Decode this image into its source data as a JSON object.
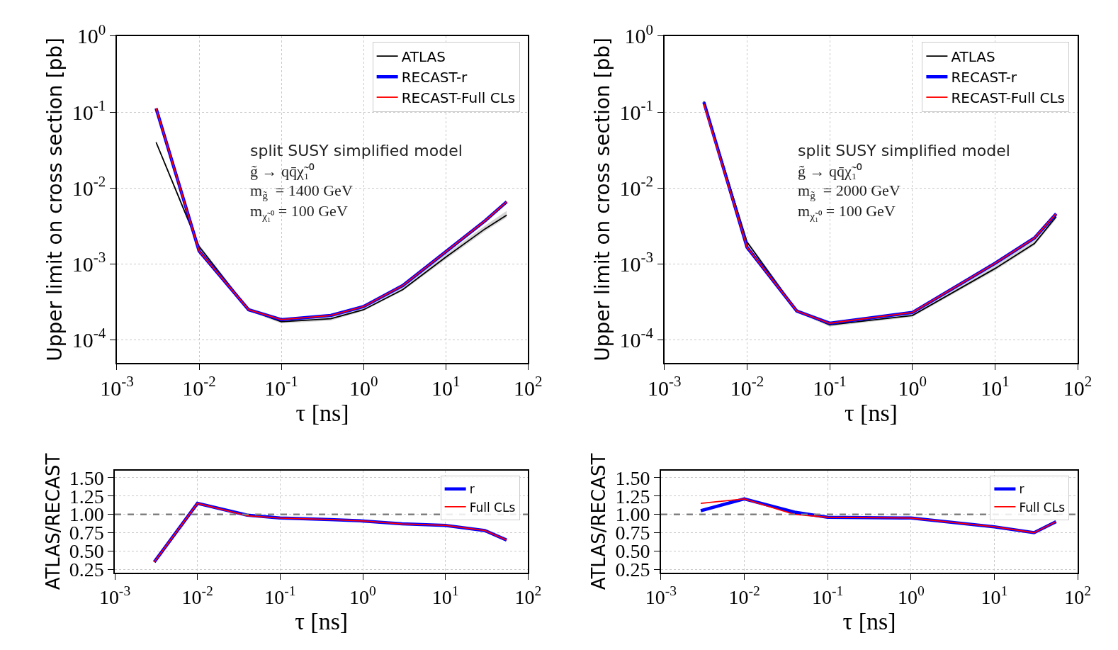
{
  "chart_data": [
    {
      "type": "line",
      "log": "xy",
      "grid": true,
      "legend": "top right",
      "line_style": "solid",
      "xlabel": "τ [ns]",
      "ylabel": "Upper limit on cross section [pb]",
      "xlim": [
        0.001,
        100
      ],
      "xticks": [
        {
          "value": 0.001,
          "label": "10$^{-3}$"
        },
        {
          "value": 0.01,
          "label": "10$^{-2}$"
        },
        {
          "value": 0.1,
          "label": "10$^{-1}$"
        },
        {
          "value": 1,
          "label": "10$^{0}$"
        },
        {
          "value": 10,
          "label": "10$^{1}$"
        },
        {
          "value": 100,
          "label": "10$^{2}$"
        }
      ],
      "ylim": [
        5e-05,
        1
      ],
      "yticks": [
        {
          "value": 0.0001,
          "label": "10$^{-4}$"
        },
        {
          "value": 0.001,
          "label": "10$^{-3}$"
        },
        {
          "value": 0.01,
          "label": "10$^{-2}$"
        },
        {
          "value": 0.1,
          "label": "10$^{-1}$"
        },
        {
          "value": 1,
          "label": "10$^{0}$"
        }
      ],
      "annotations": [
        "split SUSY simplified model",
        "g̃ → qq̄χ̃₁⁰",
        "m$_{g̃}$  = 1400 GeV",
        "m$_{χ̃₁⁰}$ = 100 GeV"
      ],
      "series": [
        {
          "name": "ATLAS",
          "color": "#000000",
          "x": [
            0.003,
            0.01,
            0.04,
            0.1,
            0.4,
            1,
            3,
            10,
            30,
            55
          ],
          "values": [
            0.04,
            0.0017,
            0.00025,
            0.000174,
            0.00019,
            0.00025,
            0.00046,
            0.00123,
            0.0029,
            0.0044
          ],
          "lower": [
            0.038,
            0.0016,
            0.00024,
            0.000165,
            0.00018,
            0.00024,
            0.00044,
            0.00115,
            0.0027,
            0.0041
          ],
          "upper": [
            0.042,
            0.0018,
            0.00026,
            0.000185,
            0.0002,
            0.00027,
            0.0005,
            0.00135,
            0.0032,
            0.005
          ]
        },
        {
          "name": "RECAST-r",
          "color": "#0000ff",
          "x": [
            0.003,
            0.01,
            0.04,
            0.1,
            0.4,
            1,
            3,
            10,
            30,
            55
          ],
          "values": [
            0.112,
            0.00148,
            0.00025,
            0.000185,
            0.00021,
            0.000275,
            0.00052,
            0.00145,
            0.0037,
            0.0066
          ]
        },
        {
          "name": "RECAST-Full CLs",
          "color": "#ff0000",
          "x": [
            0.003,
            0.01,
            0.04,
            0.1,
            0.4,
            1,
            3,
            10,
            30,
            55
          ],
          "values": [
            0.112,
            0.00148,
            0.00025,
            0.000185,
            0.00021,
            0.000275,
            0.00052,
            0.00145,
            0.0037,
            0.0066
          ]
        }
      ]
    },
    {
      "type": "line",
      "log": "xy",
      "grid": true,
      "legend": "top right",
      "line_style": "solid",
      "xlabel": "τ [ns]",
      "ylabel": "Upper limit on cross section [pb]",
      "xlim": [
        0.001,
        100
      ],
      "xticks": [
        {
          "value": 0.001,
          "label": "10$^{-3}$"
        },
        {
          "value": 0.01,
          "label": "10$^{-2}$"
        },
        {
          "value": 0.1,
          "label": "10$^{-1}$"
        },
        {
          "value": 1,
          "label": "10$^{0}$"
        },
        {
          "value": 10,
          "label": "10$^{1}$"
        },
        {
          "value": 100,
          "label": "10$^{2}$"
        }
      ],
      "ylim": [
        5e-05,
        1
      ],
      "yticks": [
        {
          "value": 0.0001,
          "label": "10$^{-4}$"
        },
        {
          "value": 0.001,
          "label": "10$^{-3}$"
        },
        {
          "value": 0.01,
          "label": "10$^{-2}$"
        },
        {
          "value": 0.1,
          "label": "10$^{-1}$"
        },
        {
          "value": 1,
          "label": "10$^{0}$"
        }
      ],
      "annotations": [
        "split SUSY simplified model",
        "g̃ → qq̄χ̃₁⁰",
        "m$_{g̃}$  = 2000 GeV",
        "m$_{χ̃₁⁰}$ = 100 GeV"
      ],
      "series": [
        {
          "name": "ATLAS",
          "color": "#000000",
          "x": [
            0.003,
            0.01,
            0.04,
            0.1,
            1,
            10,
            30,
            55
          ],
          "values": [
            0.138,
            0.00194,
            0.00024,
            0.000158,
            0.00021,
            0.00087,
            0.00186,
            0.0042
          ],
          "lower": [
            0.13,
            0.00185,
            0.00023,
            0.00015,
            0.0002,
            0.00082,
            0.00175,
            0.0039
          ],
          "upper": [
            0.145,
            0.00205,
            0.000255,
            0.000168,
            0.000225,
            0.00095,
            0.0022,
            0.0047
          ]
        },
        {
          "name": "RECAST-r",
          "color": "#0000ff",
          "x": [
            0.003,
            0.01,
            0.04,
            0.1,
            1,
            10,
            30,
            55
          ],
          "values": [
            0.135,
            0.00166,
            0.00024,
            0.000166,
            0.00023,
            0.00102,
            0.0022,
            0.0046
          ]
        },
        {
          "name": "RECAST-Full CLs",
          "color": "#ff0000",
          "x": [
            0.003,
            0.01,
            0.04,
            0.1,
            1,
            10,
            30,
            55
          ],
          "values": [
            0.128,
            0.00166,
            0.00024,
            0.000166,
            0.00023,
            0.00102,
            0.0022,
            0.0046
          ]
        }
      ]
    },
    {
      "type": "line",
      "log": "x",
      "grid": true,
      "legend": "top right",
      "line_style": "solid",
      "xlabel": "τ [ns]",
      "ylabel": "ATLAS/RECAST",
      "xlim": [
        0.001,
        100
      ],
      "xticks": [
        {
          "value": 0.001,
          "label": "10$^{-3}$"
        },
        {
          "value": 0.01,
          "label": "10$^{-2}$"
        },
        {
          "value": 0.1,
          "label": "10$^{-1}$"
        },
        {
          "value": 1,
          "label": "10$^{0}$"
        },
        {
          "value": 10,
          "label": "10$^{1}$"
        },
        {
          "value": 100,
          "label": "10$^{2}$"
        }
      ],
      "ylim": [
        0.2,
        1.6
      ],
      "yticks": [
        {
          "value": 0.25,
          "label": "0.25"
        },
        {
          "value": 0.5,
          "label": "0.50"
        },
        {
          "value": 0.75,
          "label": "0.75"
        },
        {
          "value": 1,
          "label": "1.00"
        },
        {
          "value": 1.25,
          "label": "1.25"
        },
        {
          "value": 1.5,
          "label": "1.50"
        }
      ],
      "ref_lines": [
        {
          "axis": "y",
          "value": 1,
          "color": "#808080",
          "line_style": "dashed"
        }
      ],
      "series": [
        {
          "name": "r",
          "color": "#0000ff",
          "x": [
            0.003,
            0.01,
            0.04,
            0.1,
            0.4,
            1,
            3,
            10,
            30,
            55
          ],
          "values": [
            0.35,
            1.15,
            0.99,
            0.95,
            0.93,
            0.91,
            0.87,
            0.85,
            0.78,
            0.65
          ]
        },
        {
          "name": "Full CLs",
          "color": "#ff0000",
          "x": [
            0.003,
            0.01,
            0.04,
            0.1,
            0.4,
            1,
            3,
            10,
            30,
            55
          ],
          "values": [
            0.35,
            1.15,
            0.98,
            0.95,
            0.93,
            0.91,
            0.87,
            0.85,
            0.78,
            0.65
          ]
        }
      ]
    },
    {
      "type": "line",
      "log": "x",
      "grid": true,
      "legend": "top right",
      "line_style": "solid",
      "xlabel": "τ [ns]",
      "ylabel": "ATLAS/RECAST",
      "xlim": [
        0.001,
        100
      ],
      "xticks": [
        {
          "value": 0.001,
          "label": "10$^{-3}$"
        },
        {
          "value": 0.01,
          "label": "10$^{-2}$"
        },
        {
          "value": 0.1,
          "label": "10$^{-1}$"
        },
        {
          "value": 1,
          "label": "10$^{0}$"
        },
        {
          "value": 10,
          "label": "10$^{1}$"
        },
        {
          "value": 100,
          "label": "10$^{2}$"
        }
      ],
      "ylim": [
        0.2,
        1.6
      ],
      "yticks": [
        {
          "value": 0.25,
          "label": "0.25"
        },
        {
          "value": 0.5,
          "label": "0.50"
        },
        {
          "value": 0.75,
          "label": "0.75"
        },
        {
          "value": 1,
          "label": "1.00"
        },
        {
          "value": 1.25,
          "label": "1.25"
        },
        {
          "value": 1.5,
          "label": "1.50"
        }
      ],
      "ref_lines": [
        {
          "axis": "y",
          "value": 1,
          "color": "#808080",
          "line_style": "dashed"
        }
      ],
      "series": [
        {
          "name": "r",
          "color": "#0000ff",
          "x": [
            0.003,
            0.01,
            0.04,
            0.1,
            1,
            10,
            30,
            55
          ],
          "values": [
            1.05,
            1.21,
            1.03,
            0.96,
            0.95,
            0.83,
            0.75,
            0.9
          ]
        },
        {
          "name": "Full CLs",
          "color": "#ff0000",
          "x": [
            0.003,
            0.01,
            0.04,
            0.1,
            1,
            10,
            30,
            55
          ],
          "values": [
            1.15,
            1.21,
            1.0,
            0.96,
            0.95,
            0.83,
            0.75,
            0.9
          ]
        }
      ]
    }
  ]
}
